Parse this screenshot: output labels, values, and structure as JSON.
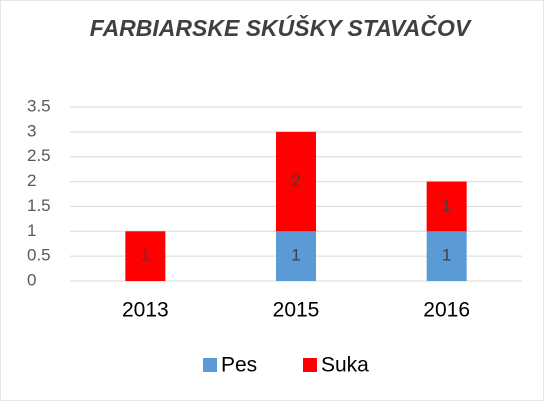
{
  "chart_data": {
    "type": "stacked_bar",
    "title": "FARBIARSKE SKÚŠKY STAVAČOV",
    "categories": [
      "2013",
      "2015",
      "2016"
    ],
    "series": [
      {
        "name": "Pes",
        "color": "#5b9bd5",
        "values": [
          0,
          1,
          1
        ]
      },
      {
        "name": "Suka",
        "color": "#ff0000",
        "values": [
          1,
          2,
          1
        ]
      }
    ],
    "ylim": [
      0,
      3.5
    ],
    "yticks": [
      0,
      0.5,
      1,
      1.5,
      2,
      2.5,
      3,
      3.5
    ],
    "grid": true,
    "legend": "bottom"
  }
}
